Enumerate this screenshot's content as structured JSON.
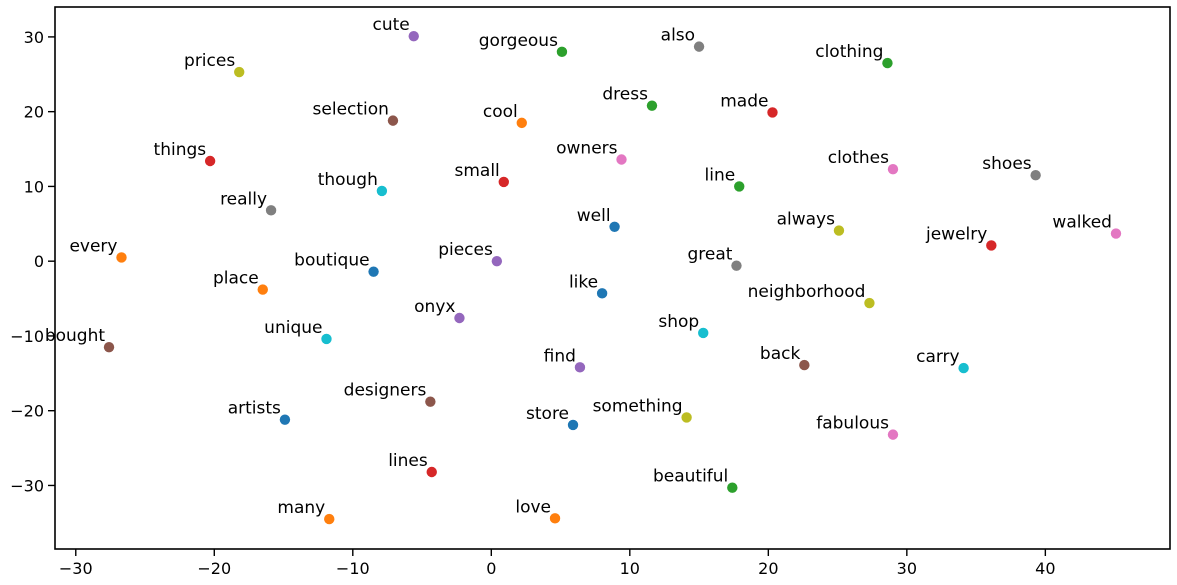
{
  "chart_data": {
    "type": "scatter",
    "title": "",
    "xlabel": "",
    "ylabel": "",
    "xlim": [
      -31.5,
      49
    ],
    "ylim": [
      -38.5,
      34
    ],
    "xticks": [
      -30,
      -20,
      -10,
      0,
      10,
      20,
      30,
      40
    ],
    "yticks": [
      30,
      20,
      10,
      0,
      -10,
      -20,
      -30
    ],
    "grid": false,
    "points": [
      {
        "label": "cute",
        "x": -5.6,
        "y": 30.1,
        "color": "#9467bd"
      },
      {
        "label": "gorgeous",
        "x": 5.1,
        "y": 28.0,
        "color": "#2ca02c"
      },
      {
        "label": "also",
        "x": 15.0,
        "y": 28.7,
        "color": "#7f7f7f"
      },
      {
        "label": "clothing",
        "x": 28.6,
        "y": 26.5,
        "color": "#2ca02c"
      },
      {
        "label": "prices",
        "x": -18.2,
        "y": 25.3,
        "color": "#bcbd22"
      },
      {
        "label": "selection",
        "x": -7.1,
        "y": 18.8,
        "color": "#8c564b"
      },
      {
        "label": "cool",
        "x": 2.2,
        "y": 18.5,
        "color": "#ff7f0e"
      },
      {
        "label": "dress",
        "x": 11.6,
        "y": 20.8,
        "color": "#2ca02c"
      },
      {
        "label": "made",
        "x": 20.3,
        "y": 19.9,
        "color": "#d62728"
      },
      {
        "label": "things",
        "x": -20.3,
        "y": 13.4,
        "color": "#d62728"
      },
      {
        "label": "owners",
        "x": 9.4,
        "y": 13.6,
        "color": "#e377c2"
      },
      {
        "label": "small",
        "x": 0.9,
        "y": 10.6,
        "color": "#d62728"
      },
      {
        "label": "though",
        "x": -7.9,
        "y": 9.4,
        "color": "#17becf"
      },
      {
        "label": "line",
        "x": 17.9,
        "y": 10.0,
        "color": "#2ca02c"
      },
      {
        "label": "clothes",
        "x": 29.0,
        "y": 12.3,
        "color": "#e377c2"
      },
      {
        "label": "shoes",
        "x": 39.3,
        "y": 11.5,
        "color": "#7f7f7f"
      },
      {
        "label": "really",
        "x": -15.9,
        "y": 6.8,
        "color": "#7f7f7f"
      },
      {
        "label": "well",
        "x": 8.9,
        "y": 4.6,
        "color": "#1f77b4"
      },
      {
        "label": "always",
        "x": 25.1,
        "y": 4.1,
        "color": "#bcbd22"
      },
      {
        "label": "walked",
        "x": 45.1,
        "y": 3.7,
        "color": "#e377c2"
      },
      {
        "label": "every",
        "x": -26.7,
        "y": 0.5,
        "color": "#ff7f0e"
      },
      {
        "label": "jewelry",
        "x": 36.1,
        "y": 2.1,
        "color": "#d62728"
      },
      {
        "label": "boutique",
        "x": -8.5,
        "y": -1.4,
        "color": "#1f77b4"
      },
      {
        "label": "pieces",
        "x": 0.4,
        "y": 0.0,
        "color": "#9467bd"
      },
      {
        "label": "great",
        "x": 17.7,
        "y": -0.6,
        "color": "#7f7f7f"
      },
      {
        "label": "place",
        "x": -16.5,
        "y": -3.8,
        "color": "#ff7f0e"
      },
      {
        "label": "like",
        "x": 8.0,
        "y": -4.3,
        "color": "#1f77b4"
      },
      {
        "label": "neighborhood",
        "x": 27.3,
        "y": -5.6,
        "color": "#bcbd22"
      },
      {
        "label": "onyx",
        "x": -2.3,
        "y": -7.6,
        "color": "#9467bd"
      },
      {
        "label": "unique",
        "x": -11.9,
        "y": -10.4,
        "color": "#17becf"
      },
      {
        "label": "shop",
        "x": 15.3,
        "y": -9.6,
        "color": "#17becf"
      },
      {
        "label": "bought",
        "x": -27.6,
        "y": -11.5,
        "color": "#8c564b"
      },
      {
        "label": "back",
        "x": 22.6,
        "y": -13.9,
        "color": "#8c564b"
      },
      {
        "label": "find",
        "x": 6.4,
        "y": -14.2,
        "color": "#9467bd"
      },
      {
        "label": "carry",
        "x": 34.1,
        "y": -14.3,
        "color": "#17becf"
      },
      {
        "label": "designers",
        "x": -4.4,
        "y": -18.8,
        "color": "#8c564b"
      },
      {
        "label": "artists",
        "x": -14.9,
        "y": -21.2,
        "color": "#1f77b4"
      },
      {
        "label": "store",
        "x": 5.9,
        "y": -21.9,
        "color": "#1f77b4"
      },
      {
        "label": "something",
        "x": 14.1,
        "y": -20.9,
        "color": "#bcbd22"
      },
      {
        "label": "fabulous",
        "x": 29.0,
        "y": -23.2,
        "color": "#e377c2"
      },
      {
        "label": "lines",
        "x": -4.3,
        "y": -28.2,
        "color": "#d62728"
      },
      {
        "label": "beautiful",
        "x": 17.4,
        "y": -30.3,
        "color": "#2ca02c"
      },
      {
        "label": "many",
        "x": -11.7,
        "y": -34.5,
        "color": "#ff7f0e"
      },
      {
        "label": "love",
        "x": 4.6,
        "y": -34.4,
        "color": "#ff7f0e"
      }
    ]
  }
}
